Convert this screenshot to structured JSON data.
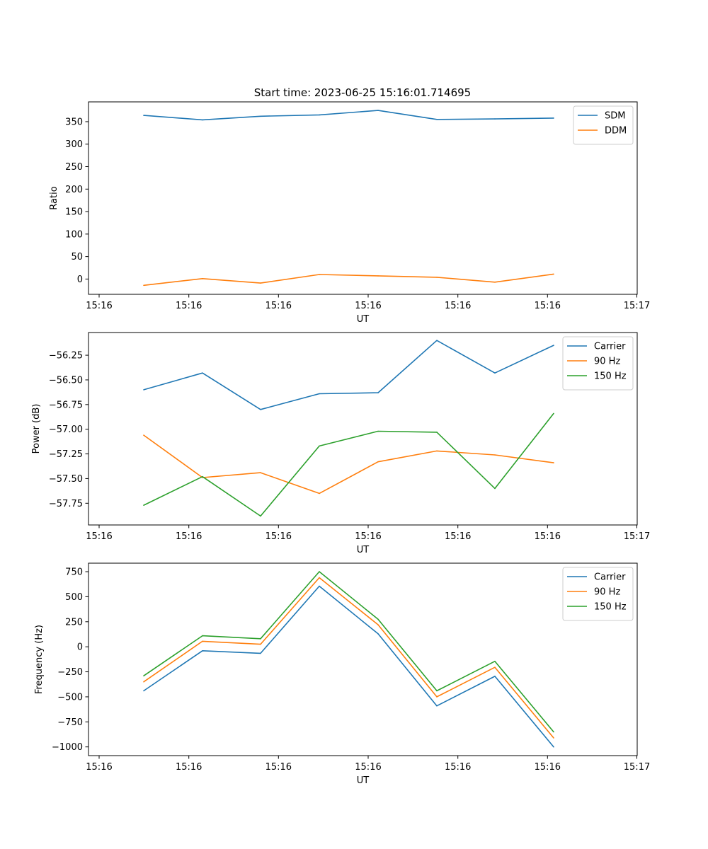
{
  "title": "Start time: 2023-06-25 15:16:01.714695",
  "colors": {
    "blue": "#1f77b4",
    "orange": "#ff7f0e",
    "green": "#2ca02c"
  },
  "chart_data": [
    {
      "type": "line",
      "xlabel": "UT",
      "ylabel": "Ratio",
      "x_tick_labels": [
        "15:16",
        "15:16",
        "15:16",
        "15:16",
        "15:16",
        "15:16",
        "15:16",
        "15:17"
      ],
      "y_ticks": [
        0,
        50,
        100,
        150,
        200,
        250,
        300,
        350
      ],
      "y_tick_labels": [
        "0",
        "50",
        "100",
        "150",
        "200",
        "250",
        "300",
        "350"
      ],
      "ylim": [
        -34,
        394
      ],
      "legend_position": "upper right",
      "grid": false,
      "series": [
        {
          "name": "SDM",
          "color": "#1f77b4",
          "values": [
            364,
            354,
            362,
            365,
            375,
            355,
            356,
            358
          ]
        },
        {
          "name": "DDM",
          "color": "#ff7f0e",
          "values": [
            -14,
            1,
            -9,
            10,
            7,
            4,
            -7,
            11
          ]
        }
      ]
    },
    {
      "type": "line",
      "xlabel": "UT",
      "ylabel": "Power (dB)",
      "x_tick_labels": [
        "15:16",
        "15:16",
        "15:16",
        "15:16",
        "15:16",
        "15:16",
        "15:16",
        "15:17"
      ],
      "y_ticks": [
        -57.75,
        -57.5,
        -57.25,
        -57.0,
        -56.75,
        -56.5,
        -56.25
      ],
      "y_tick_labels": [
        "−57.75",
        "−57.50",
        "−57.25",
        "−57.00",
        "−56.75",
        "−56.50",
        "−56.25"
      ],
      "ylim": [
        -57.97,
        -56.02
      ],
      "legend_position": "upper right",
      "grid": false,
      "series": [
        {
          "name": "Carrier",
          "color": "#1f77b4",
          "values": [
            -56.6,
            -56.43,
            -56.8,
            -56.64,
            -56.63,
            -56.1,
            -56.43,
            -56.15
          ]
        },
        {
          "name": "90 Hz",
          "color": "#ff7f0e",
          "values": [
            -57.06,
            -57.49,
            -57.44,
            -57.65,
            -57.33,
            -57.22,
            -57.26,
            -57.34
          ]
        },
        {
          "name": "150 Hz",
          "color": "#2ca02c",
          "values": [
            -57.77,
            -57.48,
            -57.88,
            -57.17,
            -57.02,
            -57.03,
            -57.6,
            -56.84
          ]
        }
      ]
    },
    {
      "type": "line",
      "xlabel": "UT",
      "ylabel": "Frequency (Hz)",
      "x_tick_labels": [
        "15:16",
        "15:16",
        "15:16",
        "15:16",
        "15:16",
        "15:16",
        "15:16",
        "15:17"
      ],
      "y_ticks": [
        -1000,
        -750,
        -500,
        -250,
        0,
        250,
        500,
        750
      ],
      "y_tick_labels": [
        "−1000",
        "−750",
        "−500",
        "−250",
        "0",
        "250",
        "500",
        "750"
      ],
      "ylim": [
        -1087,
        835
      ],
      "legend_position": "upper right",
      "grid": false,
      "series": [
        {
          "name": "Carrier",
          "color": "#1f77b4",
          "values": [
            -440,
            -40,
            -65,
            605,
            130,
            -590,
            -295,
            -1000
          ]
        },
        {
          "name": "90 Hz",
          "color": "#ff7f0e",
          "values": [
            -350,
            55,
            25,
            690,
            220,
            -500,
            -205,
            -910
          ]
        },
        {
          "name": "150 Hz",
          "color": "#2ca02c",
          "values": [
            -290,
            110,
            80,
            750,
            275,
            -440,
            -145,
            -850
          ]
        }
      ]
    }
  ]
}
